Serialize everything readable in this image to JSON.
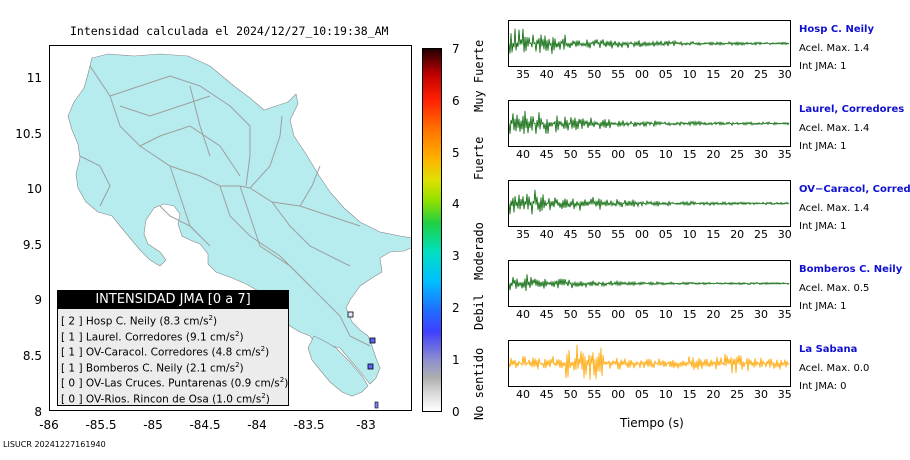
{
  "title": "Intensidad calculada el 2024/12/27_10:19:38_AM",
  "map": {
    "y_ticks": [
      "11",
      "10.5",
      "10",
      "9.5",
      "9",
      "8.5",
      "8"
    ],
    "x_ticks": [
      "-86",
      "-85.5",
      "-85",
      "-84.5",
      "-84",
      "-83.5",
      "-83"
    ],
    "land_color": "#b6ecee",
    "road_color": "#9e9e9e"
  },
  "legend": {
    "title": "INTENSIDAD JMA [0 a 7]",
    "rows": [
      {
        "code": "[ 2 ]",
        "text": "Hosp C. Neily (8.3 cm/s",
        "sup": "2",
        "end": ")"
      },
      {
        "code": "[ 1 ]",
        "text": "Laurel. Corredores (9.1 cm/s",
        "sup": "2",
        "end": ")"
      },
      {
        "code": "[ 1 ]",
        "text": "OV-Caracol. Corredores (4.8 cm/s",
        "sup": "2",
        "end": ")"
      },
      {
        "code": "[ 1 ]",
        "text": "Bomberos C. Neily (2.1 cm/s",
        "sup": "2",
        "end": ")"
      },
      {
        "code": "[ 0 ]",
        "text": "OV-Las Cruces. Puntarenas (0.9 cm/s",
        "sup": "2",
        "end": ")"
      },
      {
        "code": "[ 0 ]",
        "text": "OV-Rios. Rincon de Osa (1.0 cm/s",
        "sup": "2",
        "end": ")"
      }
    ]
  },
  "colorbar": {
    "numbers": [
      "7",
      "6",
      "5",
      "4",
      "3",
      "2",
      "1",
      "0"
    ],
    "words": [
      "Muy Fuerte",
      "Fuerte",
      "Moderado",
      "Debil",
      "No sentido"
    ]
  },
  "footer": "LISUCR 20241227161940",
  "seismograms": {
    "xlabel": "Tiempo (s)",
    "stations": [
      {
        "name": "Hosp C. Neily",
        "acel": "Acel. Max. 1.4",
        "int": "Int JMA: 1",
        "color": "#006400",
        "ticks": [
          "35",
          "40",
          "45",
          "50",
          "55",
          "00",
          "05",
          "10",
          "15",
          "20",
          "25",
          "30"
        ]
      },
      {
        "name": "Laurel, Corredores",
        "acel": "Acel. Max. 1.4",
        "int": "Int JMA: 1",
        "color": "#006400",
        "ticks": [
          "40",
          "45",
          "50",
          "55",
          "00",
          "05",
          "10",
          "15",
          "20",
          "25",
          "30",
          "35"
        ]
      },
      {
        "name": "OV−Caracol, Corredore",
        "acel": "Acel. Max. 1.4",
        "int": "Int JMA: 1",
        "color": "#006400",
        "ticks": [
          "35",
          "40",
          "45",
          "50",
          "55",
          "00",
          "05",
          "10",
          "15",
          "20",
          "25",
          "30"
        ]
      },
      {
        "name": "Bomberos C. Neily",
        "acel": "Acel. Max. 0.5",
        "int": "Int JMA: 1",
        "color": "#006400",
        "ticks": [
          "40",
          "45",
          "50",
          "55",
          "00",
          "05",
          "10",
          "15",
          "20",
          "25",
          "30",
          "35"
        ]
      },
      {
        "name": "La Sabana",
        "acel": "Acel. Max. 0.0",
        "int": "Int JMA: 0",
        "color": "#ffa500",
        "ticks": [
          "40",
          "45",
          "50",
          "55",
          "00",
          "05",
          "10",
          "15",
          "20",
          "25",
          "30",
          "35"
        ]
      }
    ]
  },
  "chart_data": [
    {
      "type": "map",
      "title": "Intensidad calculada el 2024/12/27_10:19:38_AM",
      "x_range": [
        -86,
        -82.5
      ],
      "y_range": [
        8,
        11.3
      ],
      "colorbar_range": [
        0,
        7
      ],
      "colorbar_labels": [
        "No sentido",
        "Debil",
        "Moderado",
        "Fuerte",
        "Muy Fuerte"
      ],
      "stations": [
        {
          "name": "Hosp C. Neily",
          "intensity": 2,
          "accel": 8.3
        },
        {
          "name": "Laurel. Corredores",
          "intensity": 1,
          "accel": 9.1
        },
        {
          "name": "OV-Caracol. Corredores",
          "intensity": 1,
          "accel": 4.8
        },
        {
          "name": "Bomberos C. Neily",
          "intensity": 1,
          "accel": 2.1
        },
        {
          "name": "OV-Las Cruces. Puntarenas",
          "intensity": 0,
          "accel": 0.9
        },
        {
          "name": "OV-Rios. Rincon de Osa",
          "intensity": 0,
          "accel": 1.0
        }
      ]
    },
    {
      "type": "line",
      "xlabel": "Tiempo (s)",
      "series": [
        {
          "name": "Hosp C. Neily",
          "acel_max": 1.4,
          "int_jma": 1
        },
        {
          "name": "Laurel, Corredores",
          "acel_max": 1.4,
          "int_jma": 1
        },
        {
          "name": "OV−Caracol, Corredore",
          "acel_max": 1.4,
          "int_jma": 1
        },
        {
          "name": "Bomberos C. Neily",
          "acel_max": 0.5,
          "int_jma": 1
        },
        {
          "name": "La Sabana",
          "acel_max": 0.0,
          "int_jma": 0
        }
      ]
    }
  ]
}
